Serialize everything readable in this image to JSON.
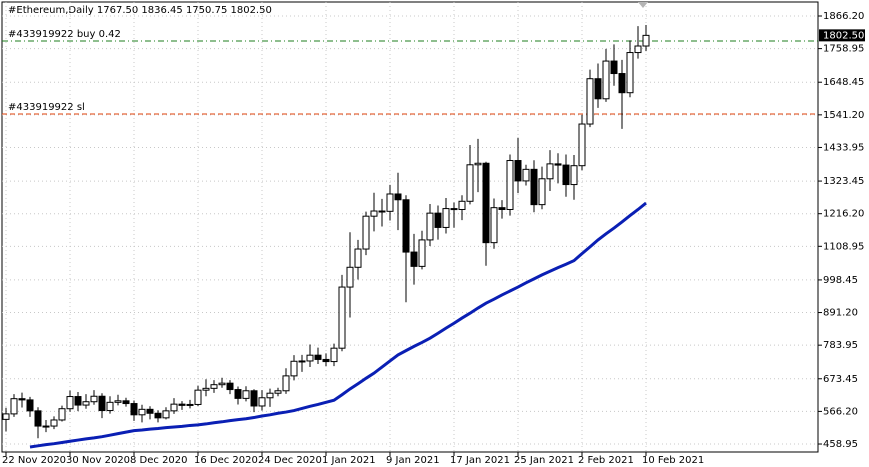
{
  "chart_data": {
    "type": "candlestick",
    "title": "#Ethereum,Daily  1767.50 1836.45 1750.75 1802.50",
    "categories": [
      "22 Nov 2020",
      null,
      null,
      null,
      null,
      null,
      null,
      null,
      "30 Nov 2020",
      null,
      null,
      null,
      null,
      null,
      null,
      null,
      "8 Dec 2020",
      null,
      null,
      null,
      null,
      null,
      null,
      null,
      "16 Dec 2020",
      null,
      null,
      null,
      null,
      null,
      null,
      null,
      "24 Dec 2020",
      null,
      null,
      null,
      null,
      null,
      null,
      null,
      "1 Jan 2021",
      null,
      null,
      null,
      null,
      null,
      null,
      null,
      "9 Jan 2021",
      null,
      null,
      null,
      null,
      null,
      null,
      null,
      "17 Jan 2021",
      null,
      null,
      null,
      null,
      null,
      null,
      null,
      "25 Jan 2021",
      null,
      null,
      null,
      null,
      null,
      null,
      null,
      "2 Feb 2021",
      null,
      null,
      null,
      null,
      null,
      null,
      null,
      "10 Feb 2021"
    ],
    "open": [
      540,
      558,
      608,
      604,
      568,
      518,
      518,
      538,
      575,
      615,
      587,
      598,
      616,
      569,
      596,
      601,
      592,
      555,
      573,
      560,
      545,
      568,
      590,
      586,
      589,
      636,
      642,
      654,
      659,
      638,
      609,
      634,
      584,
      611,
      626,
      634,
      683,
      731,
      732,
      751,
      737,
      730,
      774,
      975,
      1040,
      1100,
      1208,
      1225,
      1224,
      1281,
      1262,
      1090,
      1043,
      1130,
      1218,
      1171,
      1233,
      1230,
      1257,
      1377,
      1382,
      1121,
      1236,
      1230,
      1391,
      1324,
      1362,
      1246,
      1331,
      1380,
      1376,
      1312,
      1374,
      1511,
      1660,
      1594,
      1718,
      1677,
      1614,
      1746,
      1767.5
    ],
    "high": [
      578,
      623,
      628,
      614,
      580,
      538,
      550,
      585,
      635,
      630,
      623,
      636,
      626,
      616,
      621,
      611,
      602,
      588,
      583,
      570,
      580,
      610,
      600,
      604,
      651,
      672,
      669,
      677,
      669,
      648,
      649,
      639,
      636,
      641,
      644,
      708,
      751,
      752,
      786,
      776,
      757,
      789,
      1015,
      1155,
      1130,
      1223,
      1285,
      1265,
      1311,
      1351,
      1277,
      1150,
      1160,
      1248,
      1243,
      1268,
      1253,
      1277,
      1442,
      1462,
      1387,
      1266,
      1261,
      1411,
      1466,
      1377,
      1392,
      1371,
      1425,
      1415,
      1411,
      1409,
      1541,
      1690,
      1710,
      1758,
      1773,
      1722,
      1786,
      1833,
      1836.45
    ],
    "low": [
      500,
      548,
      579,
      548,
      478,
      498,
      508,
      533,
      565,
      567,
      575,
      588,
      544,
      559,
      586,
      582,
      535,
      530,
      540,
      530,
      540,
      558,
      571,
      576,
      584,
      616,
      627,
      644,
      623,
      589,
      599,
      564,
      569,
      581,
      616,
      624,
      668,
      696,
      712,
      722,
      715,
      715,
      764,
      875,
      1000,
      1080,
      1158,
      1174,
      1194,
      1162,
      925,
      983,
      1033,
      1110,
      1131,
      1151,
      1170,
      1195,
      1247,
      1287,
      1045,
      1101,
      1200,
      1210,
      1284,
      1309,
      1221,
      1231,
      1291,
      1316,
      1272,
      1262,
      1359,
      1501,
      1564,
      1584,
      1637,
      1495,
      1599,
      1726,
      1750.75
    ],
    "close": [
      558,
      608,
      604,
      568,
      518,
      518,
      538,
      575,
      615,
      587,
      598,
      616,
      569,
      596,
      601,
      592,
      555,
      573,
      560,
      545,
      568,
      590,
      586,
      589,
      636,
      642,
      654,
      659,
      638,
      609,
      634,
      584,
      611,
      626,
      634,
      683,
      731,
      732,
      751,
      737,
      730,
      774,
      975,
      1040,
      1100,
      1208,
      1225,
      1224,
      1281,
      1262,
      1090,
      1043,
      1130,
      1218,
      1171,
      1233,
      1230,
      1257,
      1377,
      1382,
      1121,
      1236,
      1230,
      1391,
      1324,
      1362,
      1246,
      1331,
      1380,
      1376,
      1312,
      1374,
      1511,
      1660,
      1594,
      1718,
      1677,
      1614,
      1746,
      1767.5,
      1802.5
    ],
    "up_color": "#ffffff",
    "down_color": "#000000",
    "ma": {
      "color": "#0a1fb4",
      "values": [
        null,
        null,
        null,
        449,
        453,
        457,
        460,
        464,
        468,
        472,
        476,
        479,
        483,
        488,
        493,
        498,
        503,
        505,
        508,
        510,
        513,
        515,
        517,
        520,
        522,
        525,
        529,
        532,
        536,
        539,
        542,
        546,
        551,
        555,
        560,
        564,
        569,
        576,
        583,
        589,
        596,
        603,
        621,
        640,
        657,
        675,
        692,
        712,
        732,
        752,
        766,
        780,
        793,
        807,
        823,
        840,
        856,
        873,
        889,
        906,
        922,
        935,
        949,
        962,
        975,
        989,
        1002,
        1015,
        1027,
        1039,
        1050,
        1062,
        1085,
        1107,
        1130,
        1150,
        1169,
        1189,
        1210,
        1230,
        1251
      ]
    },
    "annotations": [
      {
        "label": "#433919922 buy 0.42",
        "value": 1784,
        "color": "#1e7d1e"
      },
      {
        "label": "#433919922 sl",
        "value": 1544,
        "color": "#e0400a"
      }
    ],
    "current_price": {
      "value": 1802.5,
      "label": "1802.50"
    },
    "ylim": [
      432.7,
      1912.2
    ],
    "yticks": [
      {
        "value": 1866.2,
        "label": "1866.20"
      },
      {
        "value": 1758.95,
        "label": "1758.95"
      },
      {
        "value": 1648.45,
        "label": "1648.45"
      },
      {
        "value": 1541.2,
        "label": "1541.20"
      },
      {
        "value": 1433.95,
        "label": "1433.95"
      },
      {
        "value": 1323.45,
        "label": "1323.45"
      },
      {
        "value": 1216.2,
        "label": "1216.20"
      },
      {
        "value": 1108.95,
        "label": "1108.95"
      },
      {
        "value": 998.45,
        "label": "998.45"
      },
      {
        "value": 891.2,
        "label": "891.20"
      },
      {
        "value": 783.95,
        "label": "783.95"
      },
      {
        "value": 673.45,
        "label": "673.45"
      },
      {
        "value": 566.2,
        "label": "566.20"
      },
      {
        "value": 458.95,
        "label": "458.95"
      }
    ],
    "grid": true
  }
}
